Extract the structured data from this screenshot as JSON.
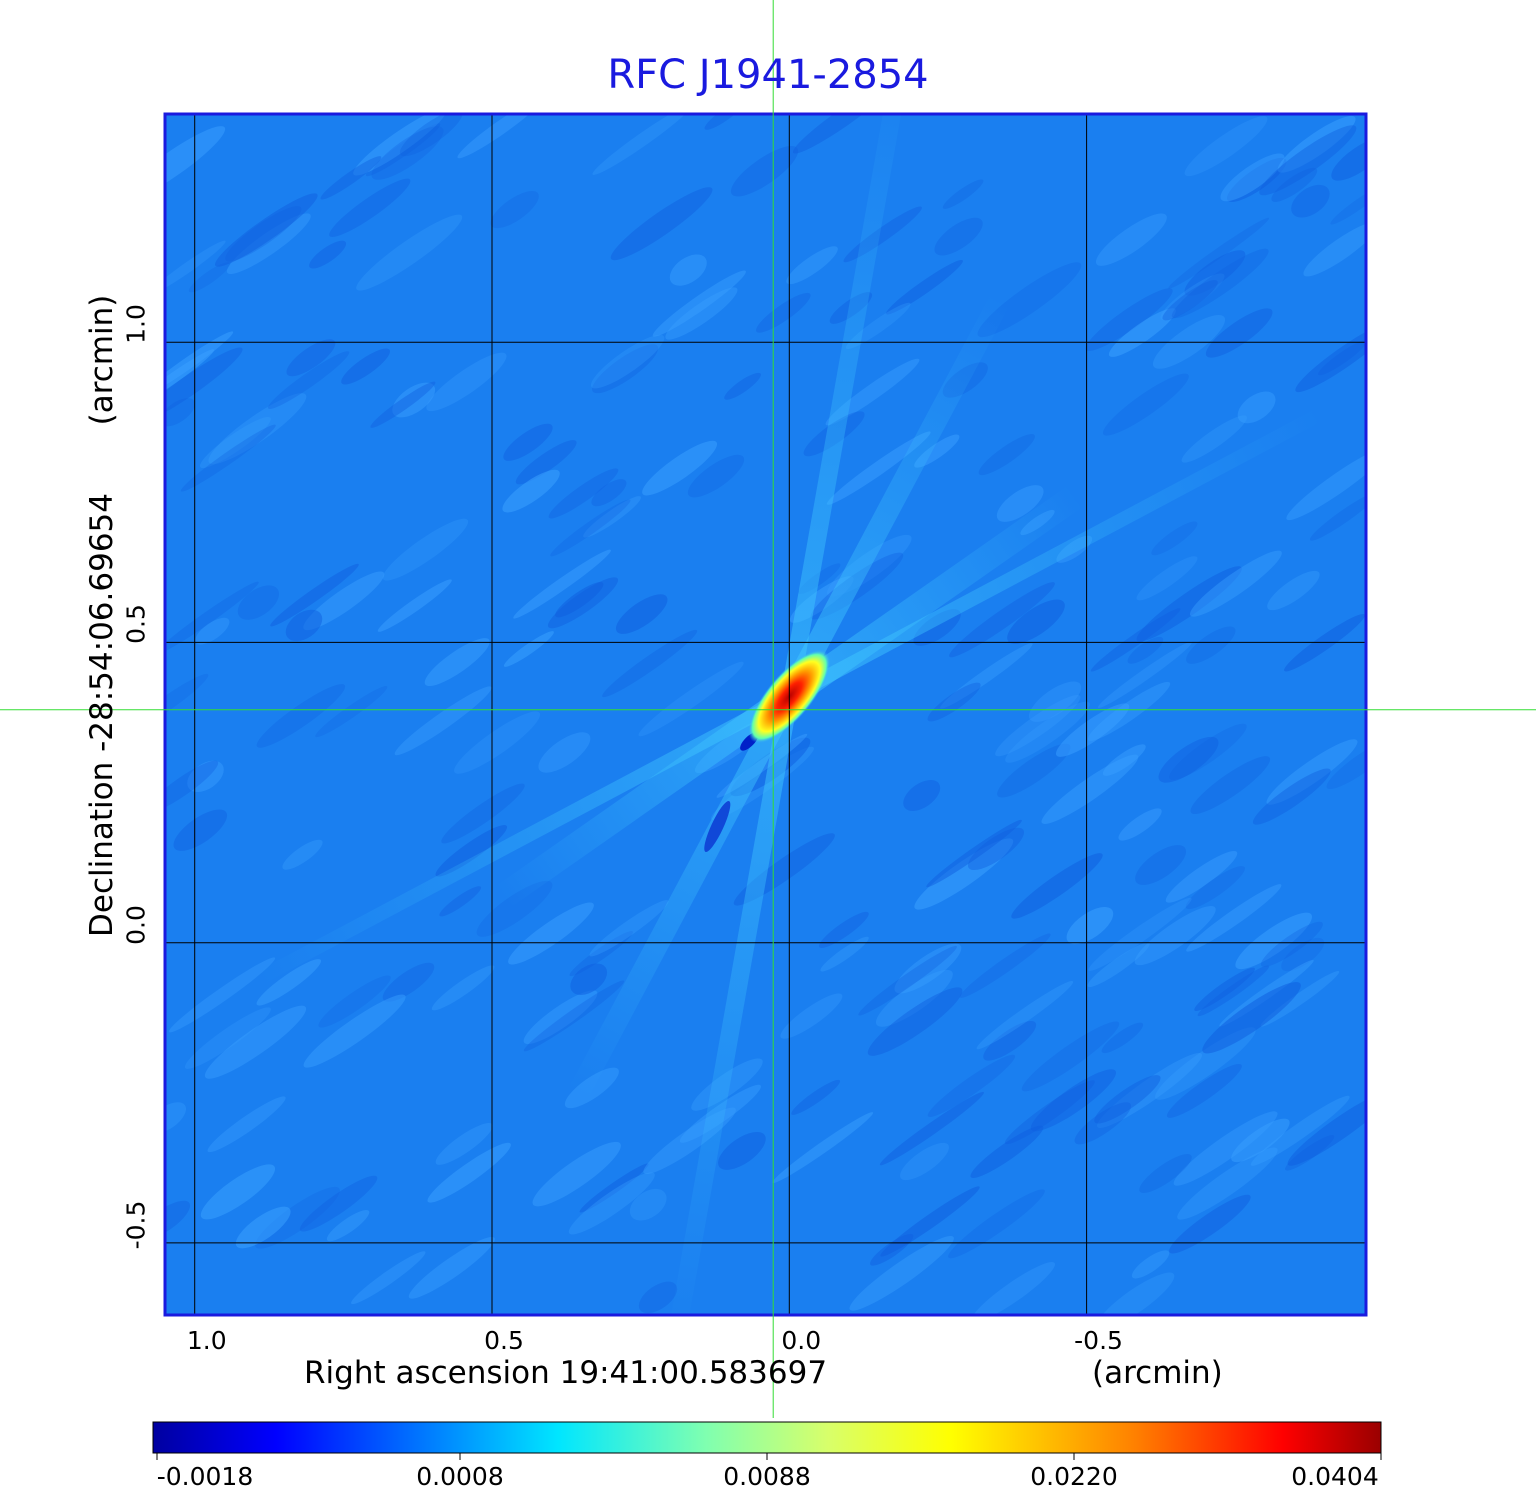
{
  "chart_data": {
    "type": "heatmap",
    "title": "RFC J1941-2854",
    "xlabel": "Right ascension  19:41:00.583697",
    "x_unit": "(arcmin)",
    "ylabel": "Declination  -28:54:06.69654",
    "y_unit": "(arcmin)",
    "x_ticks": [
      "1.0",
      "0.5",
      "0.0",
      "-0.5"
    ],
    "x_tick_values": [
      1.0,
      0.5,
      0.0,
      -0.5
    ],
    "y_ticks": [
      "1.0",
      "0.5",
      "0.0",
      "-0.5"
    ],
    "y_tick_values": [
      1.0,
      0.5,
      0.0,
      -0.5
    ],
    "xlim": [
      1.05,
      -0.97
    ],
    "ylim": [
      -0.62,
      1.38
    ],
    "grid": true,
    "crosshair": {
      "x": 0.027,
      "y": 0.388
    },
    "peak": {
      "x": 0.0,
      "y": 0.41,
      "value": 0.0404
    },
    "colorbar": {
      "ticks": [
        "-0.0018",
        "0.0008",
        "0.0088",
        "0.0220",
        "0.0404"
      ],
      "tick_values": [
        -0.0018,
        0.0008,
        0.0088,
        0.022,
        0.0404
      ],
      "colormap": "jet"
    },
    "colors": {
      "frame": "#1a1adf",
      "crosshair": "#33dd33",
      "grid": "#000000",
      "background": "#1a7ff0"
    }
  }
}
